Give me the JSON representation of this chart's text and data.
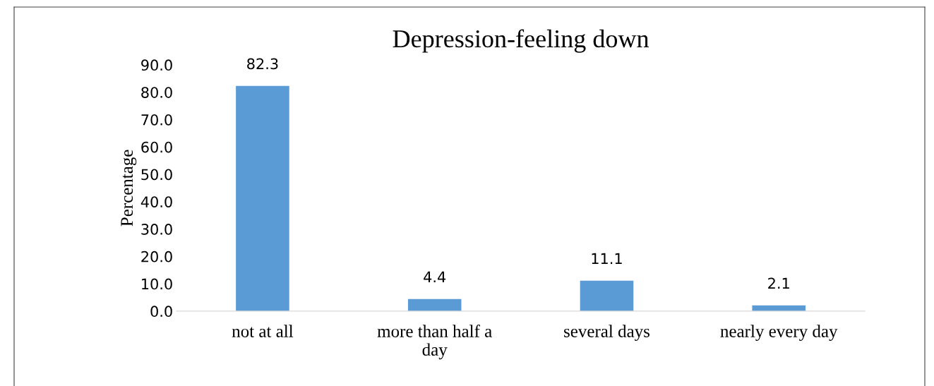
{
  "chart_data": {
    "type": "bar",
    "title": "Depression-feeling down",
    "ylabel": "Percentage",
    "categories": [
      "not at all",
      "more than half a\nday",
      "several days",
      "nearly every day"
    ],
    "values": [
      82.3,
      4.4,
      11.1,
      2.1
    ],
    "color": "#5b9bd5",
    "ylim": [
      0,
      90
    ],
    "yticks": [
      {
        "value": 0,
        "label": "0.0"
      },
      {
        "value": 10,
        "label": "10.0"
      },
      {
        "value": 20,
        "label": "20.0"
      },
      {
        "value": 30,
        "label": "30.0"
      },
      {
        "value": 40,
        "label": "40.0"
      },
      {
        "value": 50,
        "label": "50.0"
      },
      {
        "value": 60,
        "label": "60.0"
      },
      {
        "value": 70,
        "label": "70.0"
      },
      {
        "value": 80,
        "label": "80.0"
      },
      {
        "value": 90,
        "label": "90.0"
      }
    ],
    "data_labels": true,
    "grid": false,
    "legend": false
  }
}
